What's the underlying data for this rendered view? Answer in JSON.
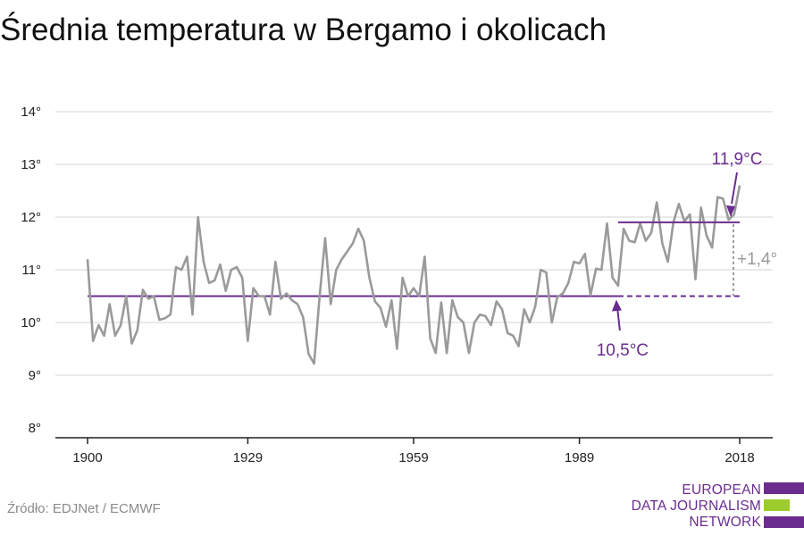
{
  "title": "Średnia temperatura w Bergamo i okolicach",
  "source": "Źródło: EDJNet / ECMWF",
  "logo": {
    "line1": "EUROPEAN",
    "line2": "DATA JOURNALISM",
    "line3": "NETWORK"
  },
  "colors": {
    "line": "#9a9a9a",
    "accent": "#6a2d8f",
    "grid": "#dddddd",
    "logo_green": "#9ccc2c",
    "diff": "#9a9a9a"
  },
  "chart_data": {
    "type": "line",
    "x_ticks": [
      "1900",
      "1929",
      "1959",
      "1989",
      "2018"
    ],
    "y_ticks": [
      "8°",
      "9°",
      "10°",
      "11°",
      "12°",
      "13°",
      "14°"
    ],
    "xlim": [
      1900,
      2018
    ],
    "ylim": [
      8,
      14
    ],
    "years_start": 1900,
    "values": [
      11.2,
      9.65,
      9.95,
      9.75,
      10.35,
      9.75,
      9.95,
      10.5,
      9.6,
      9.85,
      10.62,
      10.45,
      10.5,
      10.05,
      10.08,
      10.15,
      11.05,
      11.0,
      11.25,
      10.15,
      12.0,
      11.15,
      10.75,
      10.8,
      11.1,
      10.6,
      11.0,
      11.05,
      10.85,
      9.65,
      10.65,
      10.5,
      10.5,
      10.15,
      11.15,
      10.45,
      10.55,
      10.42,
      10.35,
      10.1,
      9.4,
      9.22,
      10.5,
      11.6,
      10.35,
      11.0,
      11.2,
      11.35,
      11.5,
      11.78,
      11.55,
      10.85,
      10.4,
      10.28,
      9.92,
      10.42,
      9.5,
      10.85,
      10.5,
      10.65,
      10.5,
      11.25,
      9.7,
      9.42,
      10.38,
      9.42,
      10.42,
      10.1,
      10.0,
      9.42,
      10.0,
      10.15,
      10.12,
      9.95,
      10.4,
      10.25,
      9.8,
      9.75,
      9.55,
      10.25,
      10.0,
      10.3,
      11.0,
      10.95,
      10.0,
      10.48,
      10.55,
      10.75,
      11.15,
      11.12,
      11.3,
      10.52,
      11.02,
      11.0,
      11.88,
      10.85,
      10.7,
      11.78,
      11.55,
      11.52,
      11.88,
      11.55,
      11.7,
      12.28,
      11.5,
      11.15,
      11.9,
      12.25,
      11.92,
      12.05,
      10.82,
      12.18,
      11.65,
      11.42,
      12.38,
      12.35,
      11.95,
      12.05,
      12.6
    ],
    "baseline": {
      "value": 10.5,
      "from": 1900,
      "to": 2018,
      "solid_to": 1996,
      "label": "10,5°C",
      "label_year": 1996
    },
    "recent": {
      "value": 11.9,
      "from": 1996,
      "to": 2018,
      "label": "11,9°C"
    },
    "difference_label": "+1,4°"
  }
}
